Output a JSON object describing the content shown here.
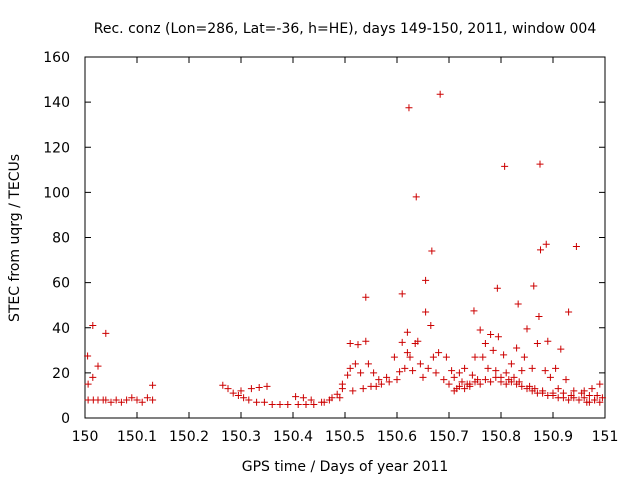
{
  "chart_data": {
    "type": "scatter",
    "title": "Rec. conz (Lon=286, Lat=-36, h=HE), days 149-150, 2011, window 004",
    "xlabel": "GPS time / Days of year 2011",
    "ylabel": "STEC from uqrg / TECUs",
    "xlim": [
      150,
      151
    ],
    "ylim": [
      0,
      160
    ],
    "x_ticks": [
      {
        "value": 150,
        "label": "150"
      },
      {
        "value": 150.1,
        "label": "150.1"
      },
      {
        "value": 150.2,
        "label": "150.2"
      },
      {
        "value": 150.3,
        "label": "150.3"
      },
      {
        "value": 150.4,
        "label": "150.4"
      },
      {
        "value": 150.5,
        "label": "150.5"
      },
      {
        "value": 150.6,
        "label": "150.6"
      },
      {
        "value": 150.7,
        "label": "150.7"
      },
      {
        "value": 150.8,
        "label": "150.8"
      },
      {
        "value": 150.9,
        "label": "150.9"
      },
      {
        "value": 151,
        "label": "151"
      }
    ],
    "y_ticks": [
      {
        "value": 0,
        "label": "0"
      },
      {
        "value": 20,
        "label": "20"
      },
      {
        "value": 40,
        "label": "40"
      },
      {
        "value": 60,
        "label": "60"
      },
      {
        "value": 80,
        "label": "80"
      },
      {
        "value": 100,
        "label": "100"
      },
      {
        "value": 120,
        "label": "120"
      },
      {
        "value": 140,
        "label": "140"
      },
      {
        "value": 160,
        "label": "160"
      }
    ],
    "grid": false,
    "legend": "none",
    "marker": "plus",
    "marker_color": "#cc0000",
    "series": [
      {
        "points": [
          [
            150.005,
            27.5
          ],
          [
            150.006,
            15
          ],
          [
            150.006,
            8
          ],
          [
            150.015,
            18
          ],
          [
            150.015,
            41
          ],
          [
            150.016,
            8
          ],
          [
            150.025,
            23
          ],
          [
            150.025,
            8
          ],
          [
            150.035,
            8
          ],
          [
            150.04,
            37.5
          ],
          [
            150.04,
            8
          ],
          [
            150.05,
            7
          ],
          [
            150.06,
            8
          ],
          [
            150.07,
            7
          ],
          [
            150.08,
            8
          ],
          [
            150.09,
            9
          ],
          [
            150.1,
            8
          ],
          [
            150.11,
            7
          ],
          [
            150.12,
            9
          ],
          [
            150.13,
            14.5
          ],
          [
            150.13,
            8
          ],
          [
            150.265,
            14.5
          ],
          [
            150.275,
            13
          ],
          [
            150.285,
            11
          ],
          [
            150.295,
            10
          ],
          [
            150.3,
            12
          ],
          [
            150.305,
            9
          ],
          [
            150.315,
            8
          ],
          [
            150.32,
            13
          ],
          [
            150.33,
            7
          ],
          [
            150.335,
            13.5
          ],
          [
            150.345,
            7
          ],
          [
            150.35,
            14
          ],
          [
            150.36,
            6
          ],
          [
            150.375,
            6
          ],
          [
            150.39,
            6
          ],
          [
            150.405,
            9.5
          ],
          [
            150.41,
            6
          ],
          [
            150.42,
            9
          ],
          [
            150.425,
            6
          ],
          [
            150.435,
            8
          ],
          [
            150.44,
            6
          ],
          [
            150.455,
            7
          ],
          [
            150.46,
            7
          ],
          [
            150.47,
            8
          ],
          [
            150.475,
            9
          ],
          [
            150.485,
            10.5
          ],
          [
            150.49,
            9
          ],
          [
            150.495,
            13
          ],
          [
            150.495,
            15
          ],
          [
            150.505,
            19
          ],
          [
            150.51,
            33
          ],
          [
            150.51,
            22
          ],
          [
            150.515,
            12
          ],
          [
            150.52,
            24
          ],
          [
            150.525,
            32.5
          ],
          [
            150.53,
            20
          ],
          [
            150.535,
            13
          ],
          [
            150.54,
            34
          ],
          [
            150.54,
            53.5
          ],
          [
            150.545,
            24
          ],
          [
            150.55,
            14
          ],
          [
            150.555,
            20
          ],
          [
            150.56,
            14
          ],
          [
            150.565,
            17
          ],
          [
            150.57,
            15
          ],
          [
            150.58,
            18
          ],
          [
            150.585,
            16
          ],
          [
            150.595,
            27
          ],
          [
            150.6,
            17
          ],
          [
            150.605,
            20.5
          ],
          [
            150.61,
            55
          ],
          [
            150.61,
            33.5
          ],
          [
            150.615,
            22
          ],
          [
            150.62,
            29
          ],
          [
            150.62,
            38
          ],
          [
            150.623,
            137.5
          ],
          [
            150.625,
            27
          ],
          [
            150.63,
            21
          ],
          [
            150.635,
            33
          ],
          [
            150.637,
            98
          ],
          [
            150.64,
            34
          ],
          [
            150.645,
            24
          ],
          [
            150.65,
            18
          ],
          [
            150.655,
            61
          ],
          [
            150.655,
            47
          ],
          [
            150.66,
            22
          ],
          [
            150.665,
            41
          ],
          [
            150.667,
            74
          ],
          [
            150.67,
            27
          ],
          [
            150.675,
            20
          ],
          [
            150.68,
            29
          ],
          [
            150.683,
            143.5
          ],
          [
            150.69,
            17
          ],
          [
            150.695,
            27
          ],
          [
            150.7,
            15
          ],
          [
            150.705,
            21
          ],
          [
            150.71,
            18
          ],
          [
            150.715,
            13
          ],
          [
            150.72,
            20
          ],
          [
            150.725,
            16
          ],
          [
            150.73,
            22
          ],
          [
            150.735,
            15
          ],
          [
            150.74,
            14
          ],
          [
            150.745,
            19
          ],
          [
            150.748,
            47.5
          ],
          [
            150.75,
            27
          ],
          [
            150.755,
            17
          ],
          [
            150.76,
            39
          ],
          [
            150.765,
            27
          ],
          [
            150.77,
            33
          ],
          [
            150.775,
            22
          ],
          [
            150.78,
            37
          ],
          [
            150.785,
            30
          ],
          [
            150.79,
            21
          ],
          [
            150.793,
            57.5
          ],
          [
            150.795,
            36
          ],
          [
            150.8,
            18
          ],
          [
            150.805,
            28
          ],
          [
            150.807,
            111.5
          ],
          [
            150.81,
            20
          ],
          [
            150.815,
            17
          ],
          [
            150.82,
            24
          ],
          [
            150.825,
            18
          ],
          [
            150.83,
            31
          ],
          [
            150.833,
            50.5
          ],
          [
            150.835,
            16
          ],
          [
            150.84,
            21
          ],
          [
            150.845,
            27
          ],
          [
            150.85,
            39.5
          ],
          [
            150.855,
            14
          ],
          [
            150.86,
            22
          ],
          [
            150.863,
            58.5
          ],
          [
            150.865,
            13
          ],
          [
            150.87,
            33
          ],
          [
            150.873,
            45
          ],
          [
            150.875,
            112.5
          ],
          [
            150.876,
            74.5
          ],
          [
            150.88,
            12
          ],
          [
            150.885,
            21
          ],
          [
            150.887,
            77
          ],
          [
            150.89,
            34
          ],
          [
            150.895,
            18
          ],
          [
            150.9,
            11
          ],
          [
            150.905,
            22
          ],
          [
            150.91,
            13
          ],
          [
            150.915,
            30.5
          ],
          [
            150.92,
            9
          ],
          [
            150.925,
            17
          ],
          [
            150.93,
            47
          ],
          [
            150.935,
            10
          ],
          [
            150.94,
            12
          ],
          [
            150.945,
            76
          ],
          [
            150.95,
            8
          ],
          [
            150.955,
            11
          ],
          [
            150.96,
            12
          ],
          [
            150.965,
            7
          ],
          [
            150.97,
            10
          ],
          [
            150.975,
            13
          ],
          [
            150.98,
            8
          ],
          [
            150.985,
            10
          ],
          [
            150.99,
            15
          ],
          [
            150.995,
            9
          ],
          [
            150.71,
            12
          ],
          [
            150.72,
            14
          ],
          [
            150.73,
            13
          ],
          [
            150.74,
            15
          ],
          [
            150.75,
            16
          ],
          [
            150.76,
            15
          ],
          [
            150.77,
            17
          ],
          [
            150.78,
            16
          ],
          [
            150.79,
            18
          ],
          [
            150.8,
            16
          ],
          [
            150.81,
            15
          ],
          [
            150.82,
            16
          ],
          [
            150.83,
            15
          ],
          [
            150.84,
            14
          ],
          [
            150.85,
            13
          ],
          [
            150.86,
            12
          ],
          [
            150.87,
            11
          ],
          [
            150.88,
            11
          ],
          [
            150.89,
            10
          ],
          [
            150.9,
            10
          ],
          [
            150.91,
            9
          ],
          [
            150.92,
            11
          ],
          [
            150.93,
            8
          ],
          [
            150.94,
            9
          ],
          [
            150.95,
            8
          ],
          [
            150.96,
            9
          ],
          [
            150.97,
            7
          ],
          [
            150.98,
            8
          ],
          [
            150.99,
            7
          ]
        ]
      }
    ]
  }
}
